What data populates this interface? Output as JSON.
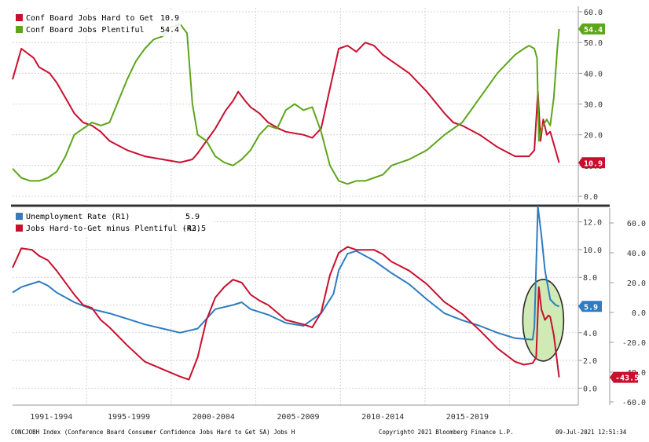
{
  "colors": {
    "red": "#c8102e",
    "green": "#5ea51c",
    "blue": "#2e7cc2",
    "grid": "#c9c9c9",
    "text": "#333333",
    "divider": "#333333",
    "highlight_fill": "#c8e6a8",
    "highlight_stroke": "#2a2a2a"
  },
  "chart_data": [
    {
      "type": "line",
      "ylim": [
        0,
        60
      ],
      "y_ticks": [
        "60.0",
        "50.0",
        "40.0",
        "30.0",
        "20.0",
        "10.0",
        "0.0"
      ],
      "legend": {
        "position": "top-left",
        "entries": [
          {
            "label": "Conf Board Jobs Hard to Get",
            "value": "10.9",
            "color": "#c8102e"
          },
          {
            "label": "Conf Board Jobs Plentiful",
            "value": "54.4",
            "color": "#5ea51c"
          }
        ]
      },
      "last_value_tags": [
        {
          "value": 54.4,
          "text": "54.4",
          "color": "#5ea51c"
        },
        {
          "value": 10.9,
          "text": "10.9",
          "color": "#c8102e"
        }
      ],
      "series": [
        {
          "name": "Conf Board Jobs Hard to Get",
          "color": "#c8102e",
          "points": [
            [
              1990.5,
              38
            ],
            [
              1991,
              48
            ],
            [
              1991.7,
              45
            ],
            [
              1992,
              42
            ],
            [
              1992.6,
              40
            ],
            [
              1993,
              37
            ],
            [
              1993.6,
              31
            ],
            [
              1994,
              27
            ],
            [
              1994.5,
              24
            ],
            [
              1995,
              23
            ],
            [
              1995.5,
              21
            ],
            [
              1996,
              18
            ],
            [
              1997,
              15
            ],
            [
              1998,
              13
            ],
            [
              1999,
              12
            ],
            [
              2000,
              11
            ],
            [
              2000.7,
              12
            ],
            [
              2001,
              14
            ],
            [
              2001.5,
              18
            ],
            [
              2002,
              22
            ],
            [
              2002.6,
              28
            ],
            [
              2003,
              31
            ],
            [
              2003.3,
              34
            ],
            [
              2003.7,
              31
            ],
            [
              2004,
              29
            ],
            [
              2004.5,
              27
            ],
            [
              2005,
              24
            ],
            [
              2005.6,
              22
            ],
            [
              2006,
              21
            ],
            [
              2007,
              20
            ],
            [
              2007.5,
              19
            ],
            [
              2008,
              22
            ],
            [
              2008.5,
              35
            ],
            [
              2009,
              48
            ],
            [
              2009.5,
              49
            ],
            [
              2010,
              47
            ],
            [
              2010.5,
              50
            ],
            [
              2011,
              49
            ],
            [
              2011.5,
              46
            ],
            [
              2012,
              44
            ],
            [
              2013,
              40
            ],
            [
              2014,
              34
            ],
            [
              2015,
              27
            ],
            [
              2015.5,
              24
            ],
            [
              2016,
              23
            ],
            [
              2017,
              20
            ],
            [
              2018,
              16
            ],
            [
              2019,
              13
            ],
            [
              2019.8,
              13
            ],
            [
              2020.1,
              15
            ],
            [
              2020.3,
              34
            ],
            [
              2020.45,
              18
            ],
            [
              2020.6,
              25
            ],
            [
              2020.8,
              20
            ],
            [
              2021,
              21
            ],
            [
              2021.2,
              17
            ],
            [
              2021.5,
              10.9
            ]
          ]
        },
        {
          "name": "Conf Board Jobs Plentiful",
          "color": "#5ea51c",
          "points": [
            [
              1990.5,
              9
            ],
            [
              1991,
              6
            ],
            [
              1991.5,
              5
            ],
            [
              1992,
              5
            ],
            [
              1992.5,
              6
            ],
            [
              1993,
              8
            ],
            [
              1993.5,
              13
            ],
            [
              1994,
              20
            ],
            [
              1994.5,
              22
            ],
            [
              1995,
              24
            ],
            [
              1995.5,
              23
            ],
            [
              1996,
              24
            ],
            [
              1996.5,
              31
            ],
            [
              1997,
              38
            ],
            [
              1997.5,
              44
            ],
            [
              1998,
              48
            ],
            [
              1998.5,
              51
            ],
            [
              1999,
              52
            ],
            [
              1999.5,
              55
            ],
            [
              2000,
              56
            ],
            [
              2000.4,
              53
            ],
            [
              2000.7,
              30
            ],
            [
              2001,
              20
            ],
            [
              2001.5,
              18
            ],
            [
              2002,
              13
            ],
            [
              2002.5,
              11
            ],
            [
              2003,
              10
            ],
            [
              2003.5,
              12
            ],
            [
              2004,
              15
            ],
            [
              2004.5,
              20
            ],
            [
              2005,
              23
            ],
            [
              2005.5,
              22
            ],
            [
              2006,
              28
            ],
            [
              2006.5,
              30
            ],
            [
              2007,
              28
            ],
            [
              2007.5,
              29
            ],
            [
              2008,
              21
            ],
            [
              2008.5,
              10
            ],
            [
              2009,
              5
            ],
            [
              2009.5,
              4
            ],
            [
              2010,
              5
            ],
            [
              2010.5,
              5
            ],
            [
              2011,
              6
            ],
            [
              2011.5,
              7
            ],
            [
              2012,
              10
            ],
            [
              2013,
              12
            ],
            [
              2014,
              15
            ],
            [
              2015,
              20
            ],
            [
              2016,
              24
            ],
            [
              2017,
              32
            ],
            [
              2018,
              40
            ],
            [
              2019,
              46
            ],
            [
              2019.5,
              48
            ],
            [
              2019.8,
              49
            ],
            [
              2020.1,
              48
            ],
            [
              2020.25,
              45
            ],
            [
              2020.35,
              18
            ],
            [
              2020.5,
              22
            ],
            [
              2020.8,
              25
            ],
            [
              2021,
              23
            ],
            [
              2021.2,
              32
            ],
            [
              2021.4,
              48
            ],
            [
              2021.5,
              54.4
            ]
          ]
        }
      ]
    },
    {
      "type": "line",
      "left_axis": {
        "ylim": [
          -60,
          70
        ],
        "ticks": [
          "60.0",
          "40.0",
          "20.0",
          "0.0",
          "-20.0",
          "-40.0",
          "-60.0"
        ]
      },
      "right_axis": {
        "ylim": [
          -1,
          13
        ],
        "ticks": [
          "12.0",
          "10.0",
          "8.0",
          "6.0",
          "4.0",
          "2.0",
          "0.0"
        ]
      },
      "x_ticks": [
        "1991-1994",
        "1995-1999",
        "2000-2004",
        "2005-2009",
        "2010-2014",
        "2015-2019"
      ],
      "xlim": [
        1990.5,
        2022.5
      ],
      "legend": {
        "position": "top-left",
        "entries": [
          {
            "label": "Unemployment Rate (R1)",
            "value": "5.9",
            "color": "#2e7cc2"
          },
          {
            "label": "Jobs Hard-to-Get minus Plentiful (R2)",
            "value": "-43.5",
            "color": "#c8102e"
          }
        ]
      },
      "last_value_tags": [
        {
          "axis": "R1",
          "value": 5.9,
          "text": "5.9",
          "color": "#2e7cc2"
        },
        {
          "axis": "R2",
          "value": -43.5,
          "text": "-43.5",
          "color": "#c8102e"
        }
      ],
      "annotations": [
        {
          "type": "ellipse",
          "x_center": 2020.6,
          "y_center_r1": 4.9,
          "color": "#c8e6a8"
        }
      ],
      "series": [
        {
          "name": "Unemployment Rate (R1)",
          "axis": "R1",
          "color": "#2e7cc2",
          "points": [
            [
              1990.5,
              6.9
            ],
            [
              1991,
              7.3
            ],
            [
              1992,
              7.7
            ],
            [
              1992.5,
              7.4
            ],
            [
              1993,
              6.9
            ],
            [
              1994,
              6.2
            ],
            [
              1995,
              5.7
            ],
            [
              1996,
              5.4
            ],
            [
              1997,
              5.0
            ],
            [
              1998,
              4.6
            ],
            [
              1999,
              4.3
            ],
            [
              2000,
              4.0
            ],
            [
              2001,
              4.3
            ],
            [
              2002,
              5.7
            ],
            [
              2003,
              6.0
            ],
            [
              2003.5,
              6.2
            ],
            [
              2004,
              5.7
            ],
            [
              2005,
              5.3
            ],
            [
              2006,
              4.7
            ],
            [
              2007,
              4.5
            ],
            [
              2008,
              5.4
            ],
            [
              2008.7,
              6.8
            ],
            [
              2009,
              8.5
            ],
            [
              2009.5,
              9.7
            ],
            [
              2010,
              9.9
            ],
            [
              2011,
              9.2
            ],
            [
              2012,
              8.3
            ],
            [
              2013,
              7.5
            ],
            [
              2014,
              6.4
            ],
            [
              2015,
              5.4
            ],
            [
              2016,
              4.9
            ],
            [
              2017,
              4.5
            ],
            [
              2018,
              4.0
            ],
            [
              2019,
              3.6
            ],
            [
              2020,
              3.5
            ],
            [
              2020.1,
              4.4
            ],
            [
              2020.3,
              14.7
            ],
            [
              2020.5,
              11
            ],
            [
              2020.7,
              8.5
            ],
            [
              2021,
              6.4
            ],
            [
              2021.3,
              6.0
            ],
            [
              2021.5,
              5.9
            ]
          ]
        },
        {
          "name": "Jobs Hard-to-Get minus Plentiful (R2)",
          "axis": "R2",
          "color": "#c8102e",
          "points": [
            [
              1990.5,
              30
            ],
            [
              1991,
              43
            ],
            [
              1991.6,
              42
            ],
            [
              1992,
              38
            ],
            [
              1992.5,
              35
            ],
            [
              1993,
              28
            ],
            [
              1994,
              12
            ],
            [
              1994.5,
              5
            ],
            [
              1995,
              3
            ],
            [
              1995.5,
              -5
            ],
            [
              1996,
              -10
            ],
            [
              1997,
              -22
            ],
            [
              1998,
              -33
            ],
            [
              1999,
              -38
            ],
            [
              2000,
              -43
            ],
            [
              2000.5,
              -45
            ],
            [
              2001,
              -30
            ],
            [
              2001.5,
              -5
            ],
            [
              2002,
              10
            ],
            [
              2002.5,
              17
            ],
            [
              2003,
              22
            ],
            [
              2003.5,
              20
            ],
            [
              2004,
              12
            ],
            [
              2004.5,
              8
            ],
            [
              2005,
              5
            ],
            [
              2006,
              -5
            ],
            [
              2007,
              -8
            ],
            [
              2007.5,
              -10
            ],
            [
              2008,
              0
            ],
            [
              2008.5,
              25
            ],
            [
              2009,
              40
            ],
            [
              2009.5,
              44
            ],
            [
              2010,
              42
            ],
            [
              2011,
              42
            ],
            [
              2011.5,
              39
            ],
            [
              2012,
              34
            ],
            [
              2013,
              28
            ],
            [
              2014,
              19
            ],
            [
              2015,
              7
            ],
            [
              2016,
              -1
            ],
            [
              2017,
              -12
            ],
            [
              2018,
              -24
            ],
            [
              2019,
              -33
            ],
            [
              2019.5,
              -35
            ],
            [
              2020,
              -34
            ],
            [
              2020.2,
              -30
            ],
            [
              2020.35,
              17
            ],
            [
              2020.5,
              2
            ],
            [
              2020.7,
              -5
            ],
            [
              2020.9,
              -2
            ],
            [
              2021,
              -3
            ],
            [
              2021.2,
              -15
            ],
            [
              2021.5,
              -43.5
            ]
          ]
        }
      ]
    }
  ],
  "footer": {
    "left": "CONCJOBH Index (Conference Board Consumer Confidence Jobs Hard to Get SA) Jobs H",
    "middle": "Copyright© 2021 Bloomberg Finance L.P.",
    "right": "09-Jul-2021 12:51:34"
  }
}
